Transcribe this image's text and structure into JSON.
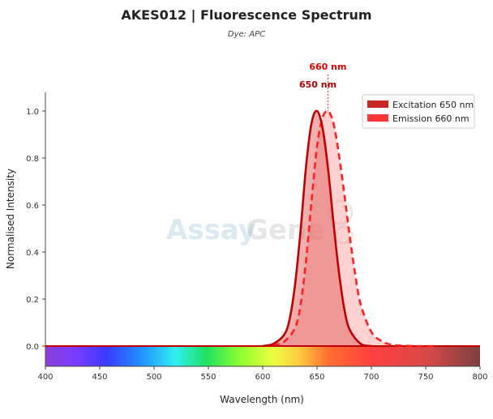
{
  "title": "AKES012  |  Fluorescence Spectrum",
  "subtitle": "Dye: APC",
  "watermark": {
    "text_a": "Assay",
    "text_b": "Gene"
  },
  "colors": {
    "excitation": "#c00000",
    "emission": "#ff2020",
    "excitation_fill": "#e06060",
    "emission_fill": "#ff9a9a"
  },
  "chart_data": {
    "type": "line",
    "title": "AKES012  |  Fluorescence Spectrum",
    "subtitle": "Dye: APC",
    "xlabel": "Wavelength (nm)",
    "ylabel": "Normalised Intensity",
    "xlim": [
      400,
      800
    ],
    "ylim": [
      -0.015,
      1.08
    ],
    "xticks": [
      400,
      450,
      500,
      550,
      600,
      650,
      700,
      750,
      800
    ],
    "yticks": [
      0.0,
      0.2,
      0.4,
      0.6,
      0.8,
      1.0
    ],
    "legend_position": "top-right",
    "spectrum_bar": true,
    "series": [
      {
        "name": "Excitation  650 nm",
        "style": "solid",
        "peak": 650,
        "x": [
          600,
          610,
          620,
          625,
          630,
          635,
          640,
          645,
          650,
          655,
          660,
          665,
          670,
          675,
          680,
          690,
          700
        ],
        "y": [
          0.0,
          0.01,
          0.05,
          0.12,
          0.27,
          0.5,
          0.77,
          0.95,
          1.0,
          0.93,
          0.76,
          0.53,
          0.32,
          0.16,
          0.07,
          0.01,
          0.0
        ]
      },
      {
        "name": "Emission  660 nm",
        "style": "dashed",
        "peak": 660,
        "x": [
          600,
          610,
          620,
          630,
          635,
          640,
          645,
          650,
          655,
          660,
          665,
          670,
          675,
          680,
          685,
          690,
          700,
          710,
          720,
          740,
          760
        ],
        "y": [
          0.0,
          0.005,
          0.02,
          0.08,
          0.18,
          0.37,
          0.62,
          0.85,
          0.97,
          1.0,
          0.95,
          0.82,
          0.65,
          0.47,
          0.31,
          0.18,
          0.06,
          0.02,
          0.005,
          0.0,
          0.0
        ]
      }
    ],
    "annotations": [
      {
        "text": "660 nm",
        "x": 660
      },
      {
        "text": "650 nm",
        "x": 650
      }
    ]
  }
}
